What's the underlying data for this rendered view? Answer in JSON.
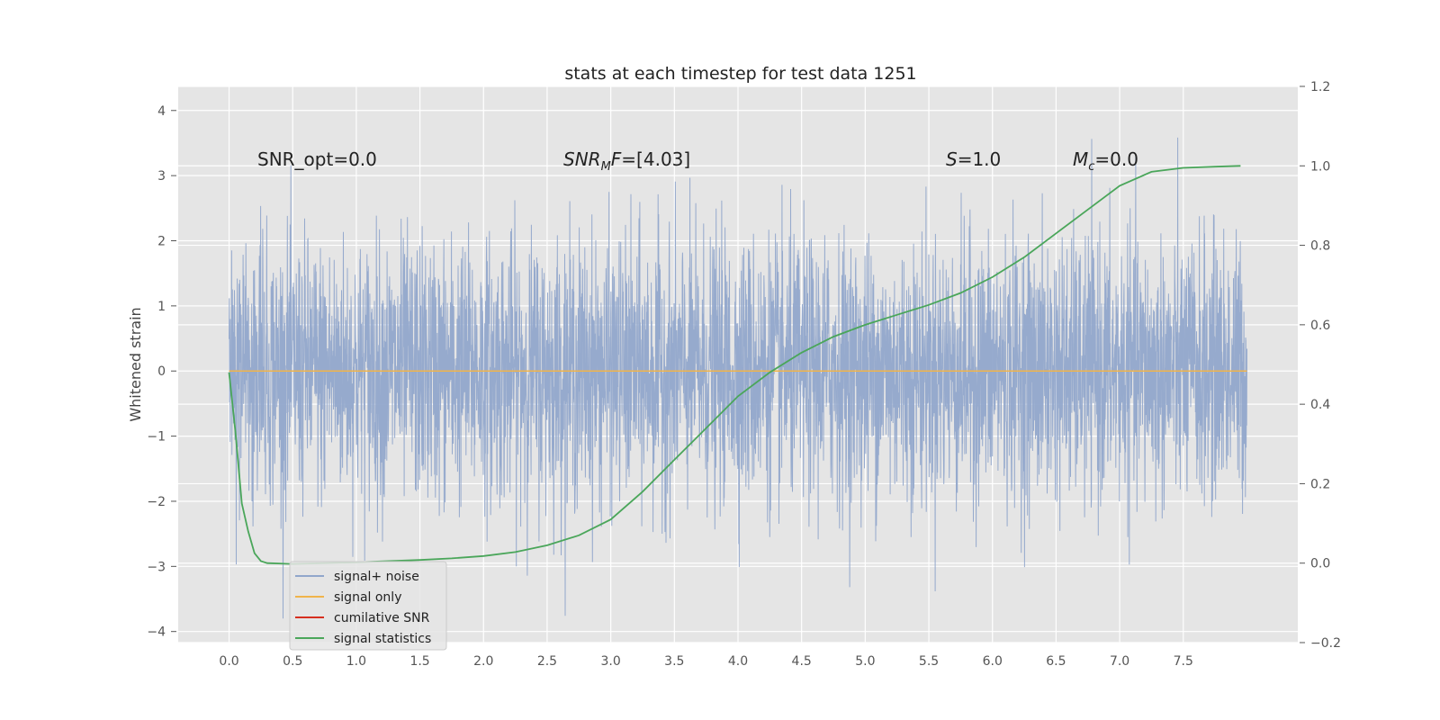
{
  "chart_data": {
    "type": "line",
    "title": "stats at each timestep for test data 1251",
    "ylabel": "Whitened strain",
    "xlim": [
      -0.4,
      8.4
    ],
    "ylim": [
      -4.17,
      4.37
    ],
    "y2lim": [
      -0.2,
      1.2
    ],
    "x_ticks": [
      "0.0",
      "0.5",
      "1.0",
      "1.5",
      "2.0",
      "2.5",
      "3.0",
      "3.5",
      "4.0",
      "4.5",
      "5.0",
      "5.5",
      "6.0",
      "6.5",
      "7.0",
      "7.5"
    ],
    "y_ticks": [
      "−4",
      "−3",
      "−2",
      "−1",
      "0",
      "1",
      "2",
      "3",
      "4"
    ],
    "y2_ticks": [
      "−0.2",
      "0.0",
      "0.2",
      "0.4",
      "0.6",
      "0.8",
      "1.0",
      "1.2"
    ],
    "grid": true,
    "legend": "lower-left",
    "annotations": {
      "snr_opt": "SNR_opt=0.0",
      "snr_mf_prefix": "SNR",
      "snr_mf_sub": "M",
      "snr_mf_suffix": "F=[4.03]",
      "s_var": "S",
      "s_val": "=1.0",
      "mc_var": "M",
      "mc_sub": "c",
      "mc_val": "=0.0"
    },
    "series": [
      {
        "name": "signal+ noise",
        "color": "#91a6cb",
        "axis": "left",
        "x_range": [
          0.0,
          8.0
        ],
        "approx_std": 1.0,
        "approx_peak_max": 4.0,
        "approx_peak_min": -3.8
      },
      {
        "name": "signal only",
        "color": "#f0b44b",
        "axis": "left",
        "x": [
          0.0,
          8.0
        ],
        "y": [
          0.0,
          0.0
        ]
      },
      {
        "name": "cumilative SNR",
        "color": "#d62f1f",
        "axis": "right",
        "x": [],
        "y": []
      },
      {
        "name": "signal statistics",
        "color": "#4aa65a",
        "axis": "right",
        "x": [
          0.0,
          0.05,
          0.1,
          0.15,
          0.2,
          0.25,
          0.3,
          0.5,
          1.0,
          1.5,
          1.75,
          2.0,
          2.25,
          2.5,
          2.75,
          3.0,
          3.25,
          3.5,
          3.75,
          4.0,
          4.25,
          4.5,
          4.75,
          5.0,
          5.25,
          5.5,
          5.75,
          6.0,
          6.25,
          6.5,
          6.75,
          7.0,
          7.25,
          7.5,
          7.75,
          7.95
        ],
        "y": [
          0.48,
          0.33,
          0.15,
          0.08,
          0.025,
          0.005,
          0.0,
          -0.002,
          0.002,
          0.008,
          0.012,
          0.018,
          0.028,
          0.045,
          0.07,
          0.11,
          0.18,
          0.26,
          0.34,
          0.42,
          0.48,
          0.53,
          0.57,
          0.6,
          0.625,
          0.65,
          0.68,
          0.72,
          0.77,
          0.83,
          0.89,
          0.95,
          0.985,
          0.995,
          0.998,
          1.0
        ]
      }
    ]
  }
}
